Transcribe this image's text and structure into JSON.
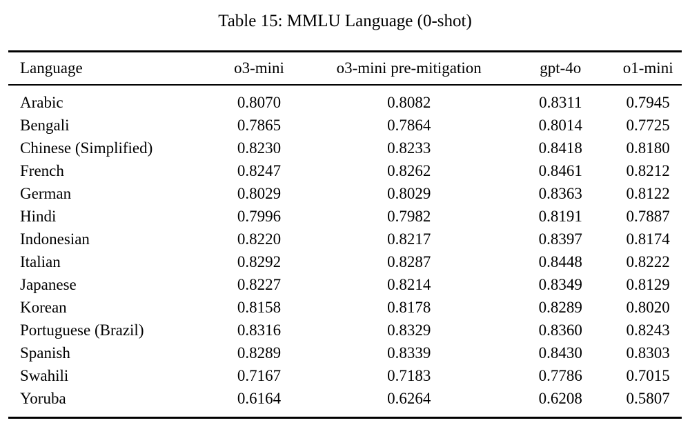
{
  "title": "Table 15: MMLU Language (0-shot)",
  "colors": {
    "background": "#ffffff",
    "text": "#000000",
    "rule": "#000000"
  },
  "table": {
    "columns": [
      "Language",
      "o3-mini",
      "o3-mini pre-mitigation",
      "gpt-4o",
      "o1-mini"
    ],
    "rows": [
      [
        "Arabic",
        "0.8070",
        "0.8082",
        "0.8311",
        "0.7945"
      ],
      [
        "Bengali",
        "0.7865",
        "0.7864",
        "0.8014",
        "0.7725"
      ],
      [
        "Chinese (Simplified)",
        "0.8230",
        "0.8233",
        "0.8418",
        "0.8180"
      ],
      [
        "French",
        "0.8247",
        "0.8262",
        "0.8461",
        "0.8212"
      ],
      [
        "German",
        "0.8029",
        "0.8029",
        "0.8363",
        "0.8122"
      ],
      [
        "Hindi",
        "0.7996",
        "0.7982",
        "0.8191",
        "0.7887"
      ],
      [
        "Indonesian",
        "0.8220",
        "0.8217",
        "0.8397",
        "0.8174"
      ],
      [
        "Italian",
        "0.8292",
        "0.8287",
        "0.8448",
        "0.8222"
      ],
      [
        "Japanese",
        "0.8227",
        "0.8214",
        "0.8349",
        "0.8129"
      ],
      [
        "Korean",
        "0.8158",
        "0.8178",
        "0.8289",
        "0.8020"
      ],
      [
        "Portuguese (Brazil)",
        "0.8316",
        "0.8329",
        "0.8360",
        "0.8243"
      ],
      [
        "Spanish",
        "0.8289",
        "0.8339",
        "0.8430",
        "0.8303"
      ],
      [
        "Swahili",
        "0.7167",
        "0.7183",
        "0.7786",
        "0.7015"
      ],
      [
        "Yoruba",
        "0.6164",
        "0.6264",
        "0.6208",
        "0.5807"
      ]
    ]
  }
}
